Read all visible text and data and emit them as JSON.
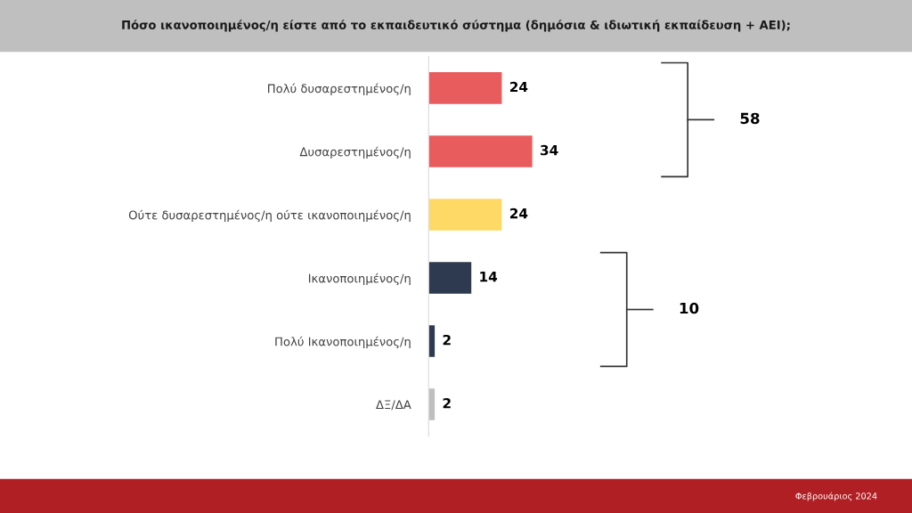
{
  "chart_data": {
    "type": "bar",
    "orientation": "horizontal",
    "title": "Πόσο ικανοποιημένος/η είστε από το εκπαιδευτικό σύστημα (δημόσια & ιδιωτική εκπαίδευση + ΑΕΙ);",
    "categories": [
      "Πολύ δυσαρεστημένος/η",
      "Δυσαρεστημένος/η",
      "Ούτε δυσαρεστημένος/η ούτε ικανοποιημένος/η",
      "Ικανοποιημένος/η",
      "Πολύ Ικανοποιημένος/η",
      "ΔΞ/ΔΑ"
    ],
    "values": [
      24,
      34,
      24,
      14,
      2,
      2
    ],
    "colors": [
      "#e85c5e",
      "#e85c5e",
      "#fed966",
      "#2e3a4f",
      "#2e3a4f",
      "#bfbfbf"
    ],
    "data_labels": true,
    "annotations": [
      "58",
      "10",
      "Φεβρουάριος 2024"
    ]
  }
}
